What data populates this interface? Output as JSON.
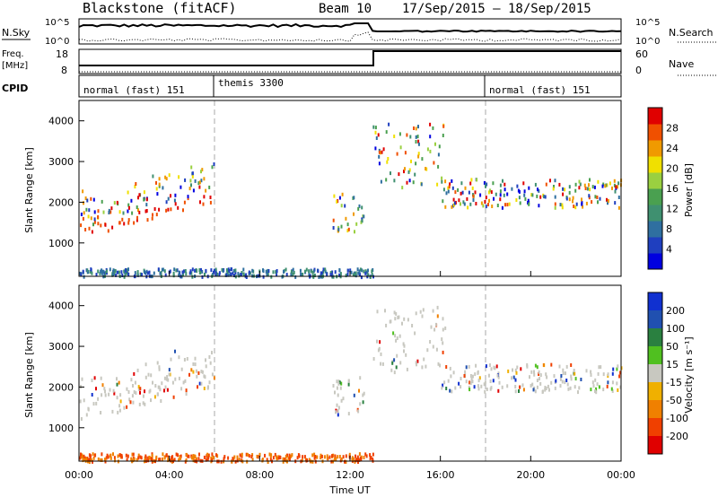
{
  "header": {
    "station": "Blackstone (fitACF)",
    "beam": "Beam 10",
    "date_range": "17/Sep/2015 – 18/Sep/2015"
  },
  "noise_panel": {
    "left_label": "N.Sky",
    "right_label": "N.Search",
    "left_ticks": [
      "10^5",
      "10^0"
    ],
    "right_ticks": [
      "10^5",
      "10^0"
    ]
  },
  "freq_panel": {
    "left_label": "Freq.",
    "left_unit": "[MHz]",
    "right_label": "Nave",
    "left_ticks": [
      "18",
      "8"
    ],
    "right_ticks": [
      "60",
      "0"
    ]
  },
  "cpid_panel": {
    "label": "CPID",
    "modes": [
      {
        "name": "normal (fast) 151",
        "start_hour": 0
      },
      {
        "name": "themis 3300",
        "start_hour": 6
      },
      {
        "name": "normal (fast) 151",
        "start_hour": 18
      }
    ]
  },
  "chart_data": [
    {
      "type": "heatmap",
      "title": "Power",
      "ylabel": "Slant Range [km]",
      "xlabel": "Time UT",
      "x_ticks": [
        "00:00",
        "04:00",
        "08:00",
        "12:00",
        "16:00",
        "20:00",
        "00:00"
      ],
      "xlim_hours": [
        0,
        24
      ],
      "y_ticks": [
        1000,
        2000,
        3000,
        4000
      ],
      "ylim_km": [
        180,
        4500
      ],
      "colorbar_label": "Power [dB]",
      "colorbar_ticks": [
        4,
        8,
        12,
        16,
        20,
        24,
        28
      ],
      "colorbar_colors": [
        "#0000e0",
        "#1f3fbf",
        "#2f6fa0",
        "#3f9070",
        "#4aa050",
        "#9ad040",
        "#f0e000",
        "#f09a00",
        "#f05000",
        "#e00000"
      ],
      "echo_bands": [
        {
          "hours": [
            0,
            6
          ],
          "range_km": [
            1150,
            2700
          ],
          "note": "band rising with time"
        },
        {
          "hours": [
            11.2,
            12.6
          ],
          "range_km": [
            1300,
            2300
          ]
        },
        {
          "hours": [
            13,
            16.2
          ],
          "range_km": [
            2400,
            4000
          ]
        },
        {
          "hours": [
            16,
            24
          ],
          "range_km": [
            1900,
            2600
          ]
        },
        {
          "hours": [
            0,
            13
          ],
          "range_km": [
            200,
            400
          ],
          "note": "ground scatter"
        }
      ]
    },
    {
      "type": "heatmap",
      "title": "Velocity",
      "ylabel": "Slant Range [km]",
      "xlabel": "Time UT",
      "x_ticks": [
        "00:00",
        "04:00",
        "08:00",
        "12:00",
        "16:00",
        "20:00",
        "00:00"
      ],
      "xlim_hours": [
        0,
        24
      ],
      "y_ticks": [
        1000,
        2000,
        3000,
        4000
      ],
      "ylim_km": [
        180,
        4500
      ],
      "colorbar_label": "Velocity [m s⁻¹]",
      "colorbar_ticks": [
        200,
        100,
        50,
        15,
        -15,
        -50,
        -100,
        -200
      ],
      "colorbar_colors": [
        "#1030d0",
        "#2050b0",
        "#2a8040",
        "#50c020",
        "#c8c8c0",
        "#f0b000",
        "#f08000",
        "#f04000",
        "#e00000"
      ],
      "echo_bands": [
        {
          "hours": [
            0,
            6
          ],
          "range_km": [
            1150,
            2700
          ]
        },
        {
          "hours": [
            11.2,
            12.6
          ],
          "range_km": [
            1300,
            2300
          ]
        },
        {
          "hours": [
            13,
            16.2
          ],
          "range_km": [
            2400,
            4000
          ]
        },
        {
          "hours": [
            16,
            24
          ],
          "range_km": [
            1900,
            2600
          ]
        },
        {
          "hours": [
            0,
            13
          ],
          "range_km": [
            200,
            400
          ]
        }
      ]
    }
  ]
}
